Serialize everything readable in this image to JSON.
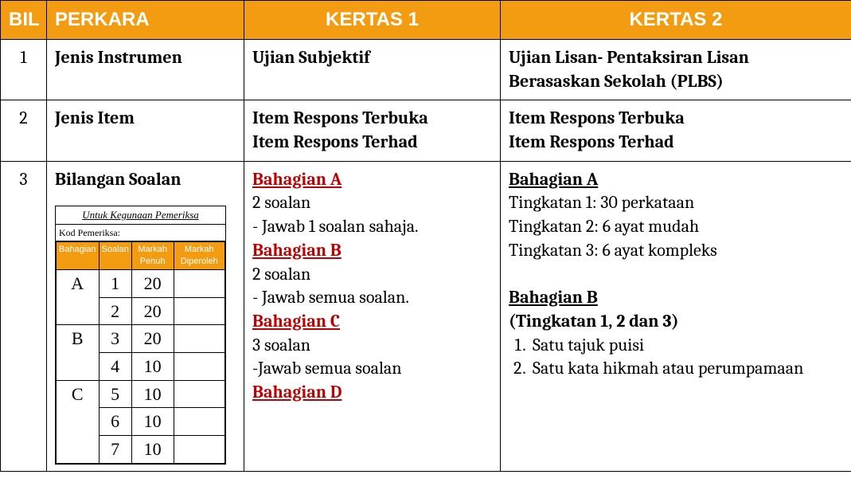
{
  "header_bg": "#f39c12",
  "header_fg": "#ffffff",
  "columns": {
    "bil": "BIL",
    "perkara": "PERKARA",
    "k1": "KERTAS 1",
    "k2": "KERTAS 2"
  },
  "rows": {
    "r1": {
      "bil": "1",
      "perkara": "Jenis Instrumen",
      "k1": "Ujian Subjektif",
      "k2": "Ujian Lisan- Pentaksiran Lisan Berasaskan Sekolah (PLBS)"
    },
    "r2": {
      "bil": "2",
      "perkara": "Jenis Item",
      "k1_l1": "Item Respons Terbuka",
      "k1_l2": "Item Respons Terhad",
      "k2_l1": "Item Respons Terbuka",
      "k2_l2": "Item Respons Terhad"
    },
    "r3": {
      "bil": "3",
      "perkara": "Bilangan Soalan",
      "k1": {
        "a_title": "Bahagian A",
        "a_l1": "2 soalan",
        "a_l2": "- Jawab 1 soalan sahaja.",
        "b_title": "Bahagian B",
        "b_l1": "2 soalan",
        "b_l2": "- Jawab semua soalan.",
        "c_title": "Bahagian C",
        "c_l1": "3 soalan",
        "c_l2": "-Jawab semua soalan",
        "d_title": "Bahagian D"
      },
      "k2": {
        "a_title": "Bahagian A",
        "a_l1": "Tingkatan 1:  30 perkataan",
        "a_l2": "Tingkatan 2:  6 ayat mudah",
        "a_l3": "Tingkatan 3:  6 ayat kompleks",
        "b_title": "Bahagian B",
        "b_sub": "(Tingkatan 1, 2 dan 3)",
        "li1": "Satu tajuk puisi",
        "li2": "Satu kata hikmah atau perumpamaan"
      }
    }
  },
  "examiner": {
    "title": "Untuk Kegunaan Pemeriksa",
    "kod": "Kod Pemeriksa:",
    "headers": {
      "bahagian": "Bahagian",
      "soalan": "Soalan",
      "penuh": "Markah Penuh",
      "diperoleh": "Markah Diperoleh"
    },
    "rows": [
      {
        "bahagian": "A",
        "soalan": "1",
        "penuh": "20"
      },
      {
        "bahagian": "",
        "soalan": "2",
        "penuh": "20"
      },
      {
        "bahagian": "B",
        "soalan": "3",
        "penuh": "20"
      },
      {
        "bahagian": "",
        "soalan": "4",
        "penuh": "10"
      },
      {
        "bahagian": "C",
        "soalan": "5",
        "penuh": "10"
      },
      {
        "bahagian": "",
        "soalan": "6",
        "penuh": "10"
      },
      {
        "bahagian": "",
        "soalan": "7",
        "penuh": "10"
      }
    ]
  }
}
